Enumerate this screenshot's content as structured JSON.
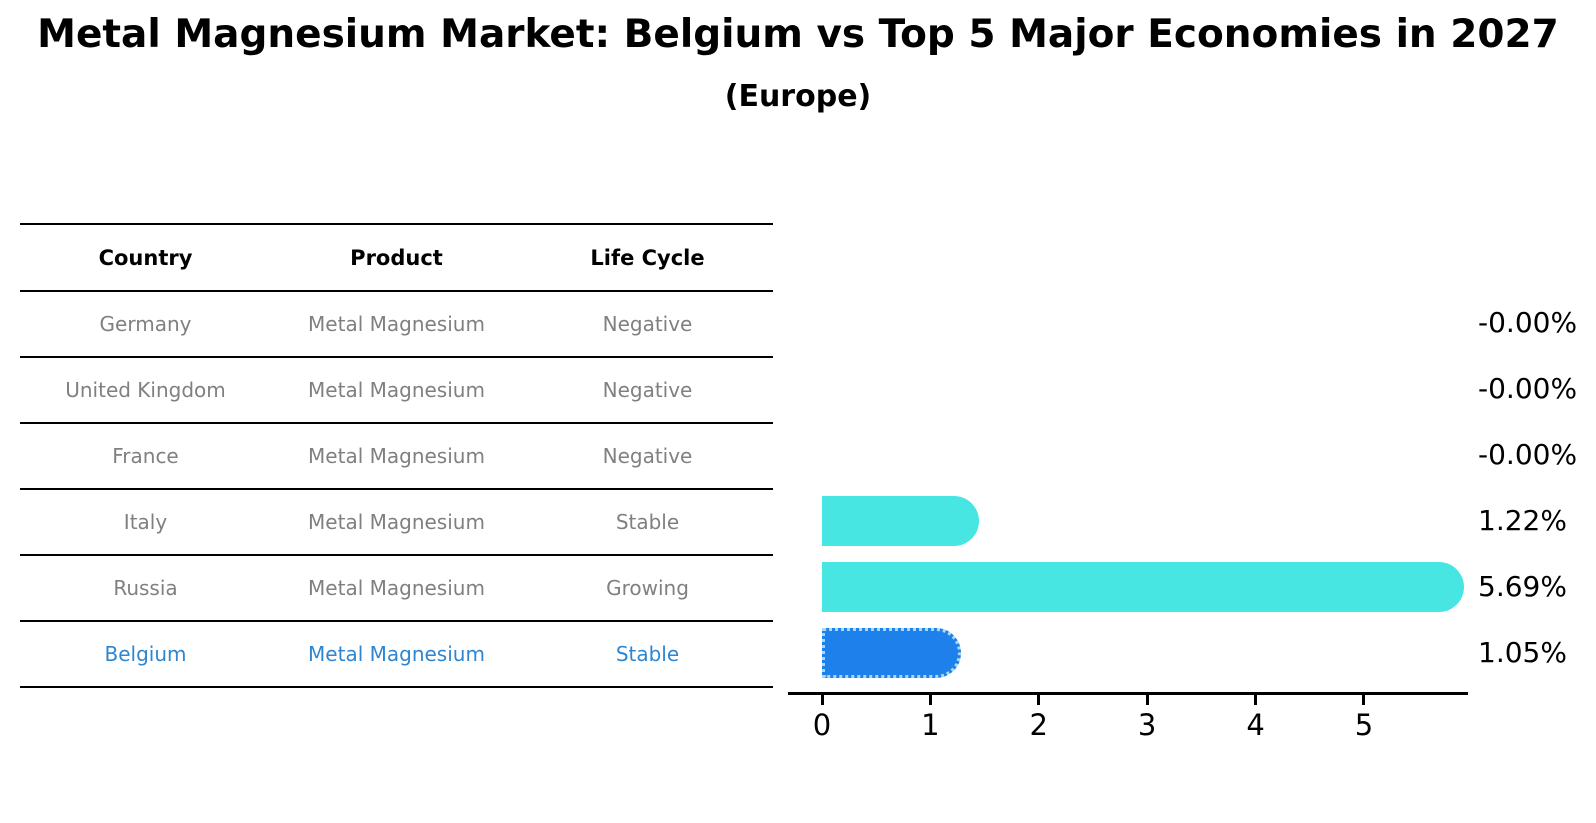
{
  "chart_data": {
    "type": "bar",
    "orientation": "horizontal",
    "title": "Metal Magnesium Market: Belgium vs Top 5 Major Economies in 2027",
    "subtitle": "(Europe)",
    "categories": [
      "Germany",
      "United Kingdom",
      "France",
      "Italy",
      "Russia",
      "Belgium"
    ],
    "values": [
      -0.0,
      -0.0,
      -0.0,
      1.22,
      5.69,
      1.05
    ],
    "value_labels": [
      "-0.00%",
      "-0.00%",
      "-0.00%",
      "1.22%",
      "5.69%",
      "1.05%"
    ],
    "x_ticks": [
      0,
      1,
      2,
      3,
      4,
      5
    ],
    "xlim": [
      0,
      5.96
    ],
    "grid": false,
    "legend": "none",
    "highlight_index": 5,
    "colors": {
      "default_bar": "#47E6E2",
      "highlight_bar": "#1E80EA",
      "highlight_bar_border": "#A9D9F2",
      "highlight_text": "#2E86D1",
      "table_text": "#808080",
      "axis": "#000000",
      "label_text": "#000000"
    }
  },
  "table": {
    "columns": [
      "Country",
      "Product",
      "Life Cycle"
    ],
    "rows": [
      {
        "country": "Germany",
        "product": "Metal Magnesium",
        "life_cycle": "Negative",
        "highlight": false
      },
      {
        "country": "United Kingdom",
        "product": "Metal Magnesium",
        "life_cycle": "Negative",
        "highlight": false
      },
      {
        "country": "France",
        "product": "Metal Magnesium",
        "life_cycle": "Negative",
        "highlight": false
      },
      {
        "country": "Italy",
        "product": "Metal Magnesium",
        "life_cycle": "Stable",
        "highlight": false
      },
      {
        "country": "Russia",
        "product": "Metal Magnesium",
        "life_cycle": "Growing",
        "highlight": false
      },
      {
        "country": "Belgium",
        "product": "Metal Magnesium",
        "life_cycle": "Stable",
        "highlight": true
      }
    ]
  }
}
